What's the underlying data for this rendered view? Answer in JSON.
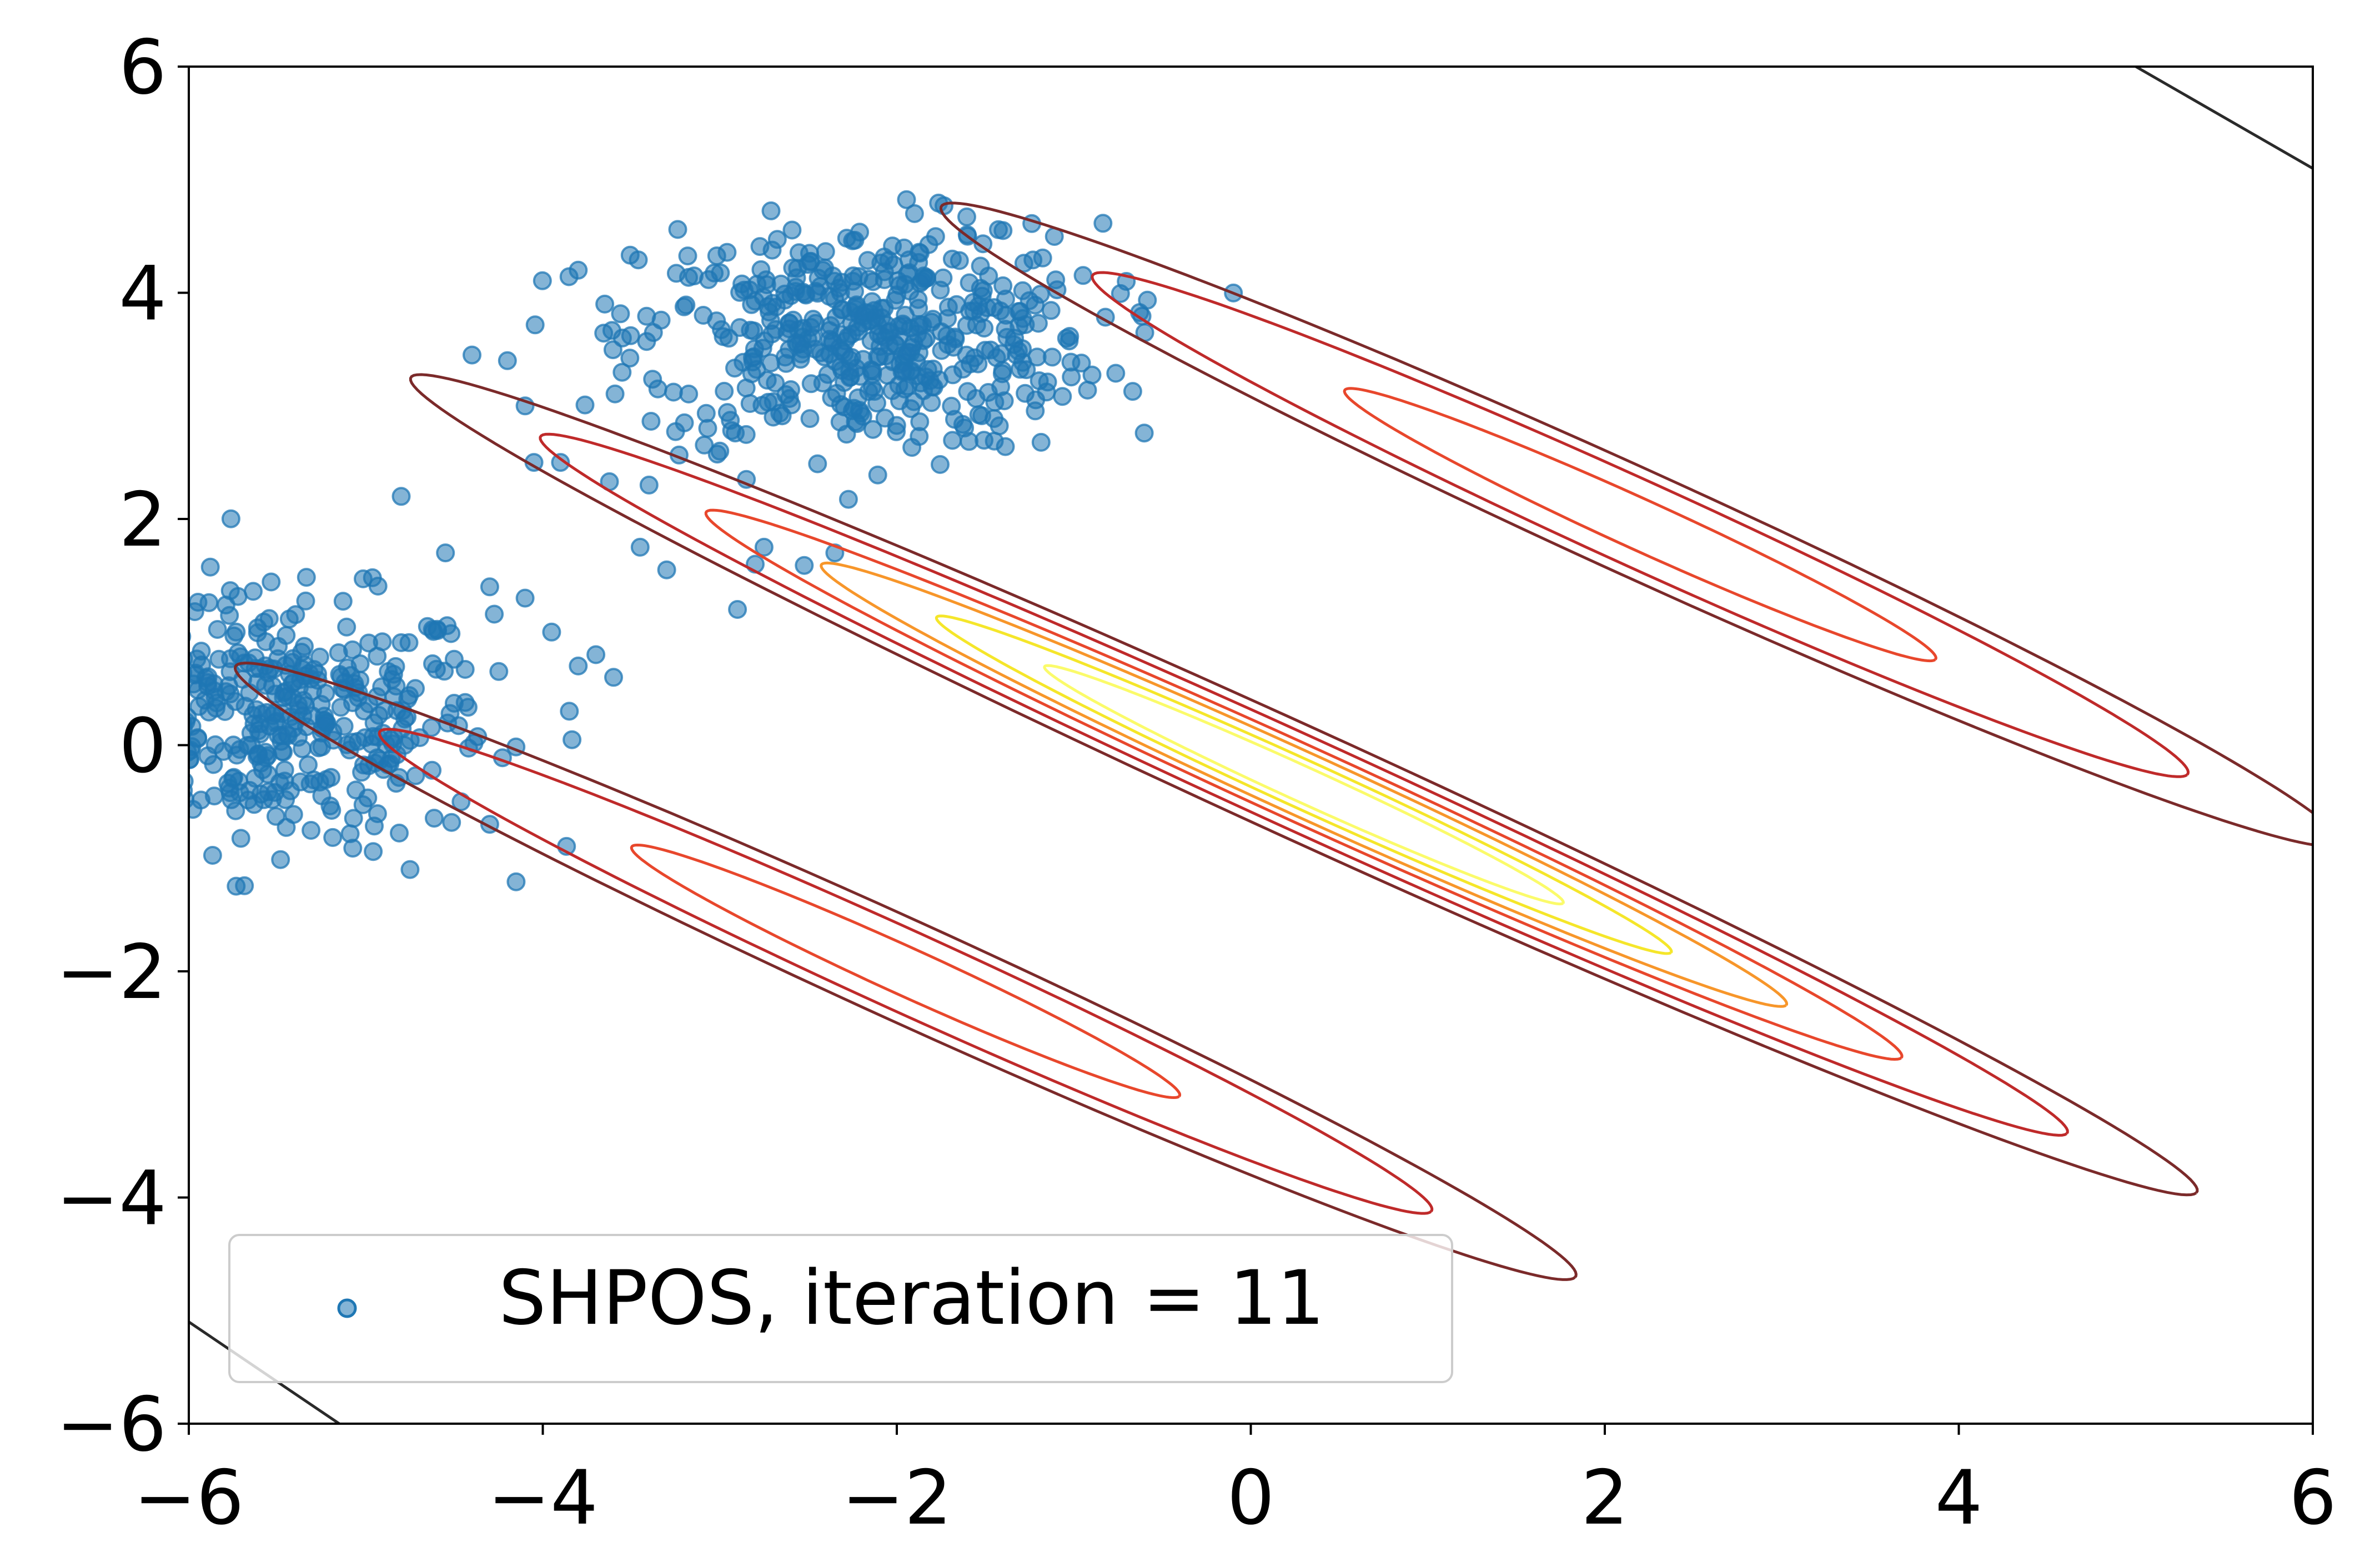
{
  "chart_data": {
    "type": "scatter",
    "title": "",
    "xlabel": "",
    "ylabel": "",
    "xlim": [
      -6,
      6
    ],
    "ylim": [
      -6,
      6
    ],
    "grid": false,
    "legend": {
      "placement": "lower-left",
      "entries": [
        {
          "label": "SHPOS, iteration = 11",
          "color": "#1f77b4",
          "marker": "circle"
        }
      ]
    },
    "x_ticks": [
      -6,
      -4,
      -2,
      0,
      2,
      4,
      6
    ],
    "x_tick_labels": [
      "−6",
      "−4",
      "−2",
      "0",
      "2",
      "4",
      "6"
    ],
    "y_ticks": [
      -6,
      -4,
      -2,
      0,
      2,
      4,
      6
    ],
    "y_tick_labels": [
      "−6",
      "−4",
      "−2",
      "0",
      "2",
      "4",
      "6"
    ],
    "scatter_series": {
      "name": "SHPOS, iteration = 11",
      "color": "#1f77b4",
      "opacity": 0.55,
      "clusters": [
        {
          "center": [
            -5.5,
            0.2
          ],
          "spread": [
            0.6,
            0.55
          ],
          "count": 420
        },
        {
          "center": [
            -2.15,
            3.6
          ],
          "spread": [
            0.65,
            0.5
          ],
          "count": 480
        }
      ],
      "outliers": [
        [
          -4.8,
          2.2
        ],
        [
          -4.55,
          1.7
        ],
        [
          -4.3,
          1.4
        ],
        [
          -4.1,
          1.3
        ],
        [
          -3.95,
          1.0
        ],
        [
          -3.8,
          0.7
        ],
        [
          -3.7,
          0.8
        ],
        [
          -3.6,
          0.6
        ],
        [
          -3.85,
          0.3
        ],
        [
          -4.3,
          -0.7
        ],
        [
          -4.75,
          -1.1
        ],
        [
          -3.8,
          4.2
        ],
        [
          -3.65,
          3.9
        ],
        [
          -3.55,
          3.6
        ],
        [
          -3.35,
          3.15
        ],
        [
          -3.2,
          2.85
        ],
        [
          -3.0,
          2.6
        ],
        [
          -2.85,
          2.35
        ],
        [
          -2.75,
          1.75
        ],
        [
          -2.8,
          1.6
        ],
        [
          -2.9,
          1.2
        ],
        [
          -3.4,
          2.3
        ],
        [
          -3.45,
          1.75
        ],
        [
          -3.3,
          1.55
        ],
        [
          -4.05,
          2.5
        ],
        [
          -4.2,
          3.4
        ],
        [
          -4.1,
          3.0
        ],
        [
          -3.9,
          2.5
        ],
        [
          -4.4,
          3.45
        ],
        [
          -2.35,
          1.7
        ],
        [
          -1.9,
          4.7
        ],
        [
          -1.6,
          4.5
        ],
        [
          -1.4,
          4.55
        ]
      ]
    },
    "contour_groups": [
      {
        "center": [
          0.3,
          -0.35
        ],
        "angle_deg": -35.6,
        "levels": [
          {
            "semi_major": 6.2,
            "semi_minor": 0.44,
            "color": "#7b2a2a"
          },
          {
            "semi_major": 5.3,
            "semi_minor": 0.37,
            "color": "#bf2a2a"
          },
          {
            "semi_major": 4.15,
            "semi_minor": 0.3,
            "color": "#e8472c"
          },
          {
            "semi_major": 3.35,
            "semi_minor": 0.25,
            "color": "#f7962a"
          },
          {
            "semi_major": 2.55,
            "semi_minor": 0.19,
            "color": "#f5e62a"
          },
          {
            "semi_major": 1.8,
            "semi_minor": 0.14,
            "color": "#fbfb6a"
          }
        ]
      },
      {
        "center": [
          2.2,
          1.95
        ],
        "angle_deg": -35.6,
        "levels": [
          {
            "semi_major": 4.85,
            "semi_minor": 0.42,
            "color": "#7b2a2a"
          },
          {
            "semi_major": 3.8,
            "semi_minor": 0.34,
            "color": "#bf2a2a"
          },
          {
            "semi_major": 2.05,
            "semi_minor": 0.2,
            "color": "#e8472c"
          }
        ]
      },
      {
        "center": [
          -1.95,
          -2.0
        ],
        "angle_deg": -35.6,
        "levels": [
          {
            "semi_major": 4.65,
            "semi_minor": 0.4,
            "color": "#7b2a2a"
          },
          {
            "semi_major": 3.65,
            "semi_minor": 0.32,
            "color": "#bf2a2a"
          },
          {
            "semi_major": 1.9,
            "semi_minor": 0.19,
            "color": "#e8472c"
          }
        ]
      }
    ],
    "extra_lines": [
      {
        "points": [
          [
            5.0,
            6.0
          ],
          [
            6.0,
            5.1
          ]
        ],
        "color": "#2a2a2a"
      },
      {
        "points": [
          [
            -6.0,
            -5.1
          ],
          [
            -5.15,
            -6.0
          ]
        ],
        "color": "#2a2a2a"
      }
    ]
  }
}
